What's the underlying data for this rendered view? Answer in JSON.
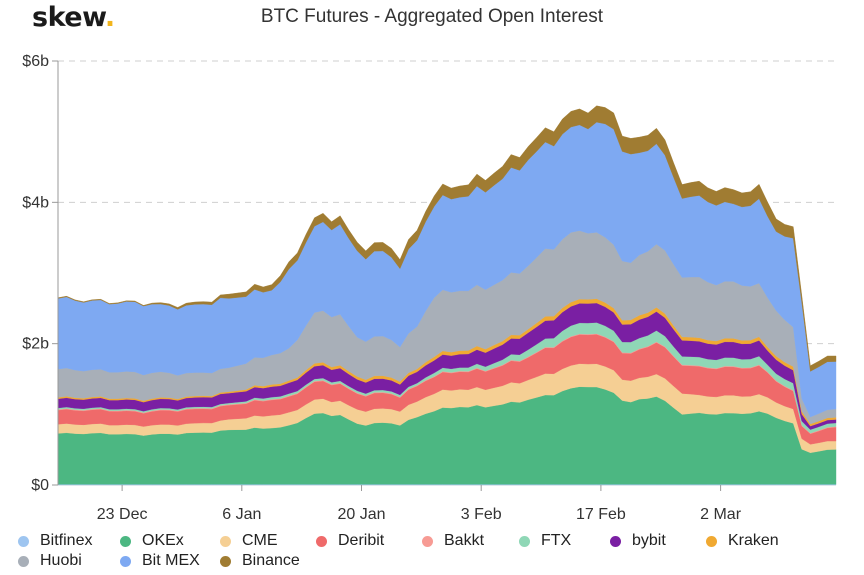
{
  "logo": {
    "text": "skew",
    "dot": "."
  },
  "chart_data": {
    "type": "area",
    "stacked": true,
    "title": "BTC Futures - Aggregated Open Interest",
    "xlabel": "",
    "ylabel": "",
    "ylim": [
      0,
      6
    ],
    "y_unit": "USD billions",
    "y_ticks": [
      0,
      2,
      4,
      6
    ],
    "y_tick_labels": [
      "$0",
      "$2b",
      "$4b",
      "$6b"
    ],
    "x_tick_labels": [
      "23 Dec",
      "6 Jan",
      "20 Jan",
      "3 Feb",
      "17 Feb",
      "2 Mar"
    ],
    "x_tick_index": [
      7.5,
      21.5,
      35.5,
      49.5,
      63.5,
      77.5
    ],
    "grid": "horizontal dashed",
    "legend_position": "bottom",
    "n_points": 92,
    "knots_index": [
      0,
      5,
      10,
      12,
      15,
      19,
      20,
      25,
      27,
      30,
      33,
      35,
      36,
      38,
      40,
      42,
      44,
      47,
      50,
      53,
      55,
      57,
      60,
      62,
      65,
      66,
      67,
      68,
      70,
      73,
      75,
      77,
      79,
      82,
      83,
      84,
      86,
      87,
      88,
      91
    ],
    "total_knots": [
      2.65,
      2.6,
      2.58,
      2.56,
      2.55,
      2.65,
      2.7,
      2.85,
      3.1,
      3.78,
      3.8,
      3.4,
      3.38,
      3.42,
      3.25,
      3.6,
      4.15,
      4.25,
      4.35,
      4.6,
      4.8,
      5.0,
      5.25,
      5.35,
      5.28,
      5.0,
      4.85,
      4.9,
      5.08,
      4.3,
      4.25,
      4.2,
      4.15,
      4.2,
      4.0,
      3.8,
      3.6,
      2.7,
      1.7,
      1.85
    ],
    "series": [
      {
        "name": "Bitfinex",
        "color": "#9ec5f0",
        "knots": [
          0.01,
          0.01,
          0.01,
          0.01,
          0.01,
          0.01,
          0.01,
          0.01,
          0.01,
          0.01,
          0.01,
          0.01,
          0.01,
          0.01,
          0.01,
          0.01,
          0.01,
          0.01,
          0.01,
          0.01,
          0.01,
          0.01,
          0.01,
          0.01,
          0.01,
          0.01,
          0.01,
          0.01,
          0.01,
          0.01,
          0.01,
          0.01,
          0.01,
          0.01,
          0.01,
          0.01,
          0.01,
          0.01,
          0.01,
          0.01
        ]
      },
      {
        "name": "OKEx",
        "color": "#4cb782",
        "knots": [
          0.72,
          0.72,
          0.7,
          0.71,
          0.72,
          0.75,
          0.77,
          0.8,
          0.82,
          1.0,
          0.98,
          0.85,
          0.85,
          0.87,
          0.85,
          0.95,
          1.05,
          1.1,
          1.1,
          1.15,
          1.2,
          1.25,
          1.35,
          1.4,
          1.3,
          1.2,
          1.15,
          1.2,
          1.25,
          1.0,
          1.0,
          1.0,
          1.0,
          1.02,
          1.0,
          0.95,
          0.85,
          0.5,
          0.45,
          0.5
        ]
      },
      {
        "name": "CME",
        "color": "#f5cf94",
        "knots": [
          0.13,
          0.13,
          0.13,
          0.13,
          0.13,
          0.14,
          0.15,
          0.18,
          0.18,
          0.2,
          0.2,
          0.2,
          0.2,
          0.2,
          0.2,
          0.22,
          0.25,
          0.25,
          0.25,
          0.27,
          0.28,
          0.3,
          0.32,
          0.33,
          0.32,
          0.3,
          0.3,
          0.3,
          0.32,
          0.3,
          0.25,
          0.25,
          0.25,
          0.24,
          0.23,
          0.22,
          0.2,
          0.15,
          0.12,
          0.12
        ]
      },
      {
        "name": "Deribit",
        "color": "#ef6a6a",
        "knots": [
          0.2,
          0.2,
          0.19,
          0.2,
          0.2,
          0.2,
          0.2,
          0.22,
          0.22,
          0.25,
          0.24,
          0.22,
          0.22,
          0.22,
          0.2,
          0.22,
          0.24,
          0.25,
          0.26,
          0.3,
          0.32,
          0.36,
          0.4,
          0.42,
          0.4,
          0.38,
          0.38,
          0.4,
          0.45,
          0.4,
          0.4,
          0.4,
          0.4,
          0.4,
          0.35,
          0.3,
          0.25,
          0.18,
          0.15,
          0.2
        ]
      },
      {
        "name": "Bakkt",
        "color": "#f79b94",
        "knots": [
          0.01,
          0.01,
          0.01,
          0.01,
          0.01,
          0.01,
          0.01,
          0.01,
          0.01,
          0.01,
          0.01,
          0.01,
          0.01,
          0.01,
          0.01,
          0.01,
          0.01,
          0.01,
          0.01,
          0.01,
          0.01,
          0.01,
          0.01,
          0.01,
          0.01,
          0.01,
          0.01,
          0.01,
          0.01,
          0.01,
          0.01,
          0.01,
          0.01,
          0.01,
          0.01,
          0.01,
          0.01,
          0.01,
          0.01,
          0.01
        ]
      },
      {
        "name": "FTX",
        "color": "#8fd7b6",
        "knots": [
          0.02,
          0.02,
          0.02,
          0.02,
          0.02,
          0.02,
          0.02,
          0.03,
          0.03,
          0.03,
          0.03,
          0.03,
          0.03,
          0.03,
          0.03,
          0.03,
          0.05,
          0.05,
          0.06,
          0.08,
          0.1,
          0.12,
          0.15,
          0.16,
          0.15,
          0.15,
          0.15,
          0.15,
          0.16,
          0.12,
          0.12,
          0.12,
          0.12,
          0.12,
          0.1,
          0.1,
          0.1,
          0.06,
          0.05,
          0.05
        ]
      },
      {
        "name": "bybit",
        "color": "#7a1fa3",
        "knots": [
          0.13,
          0.13,
          0.13,
          0.13,
          0.13,
          0.14,
          0.14,
          0.15,
          0.15,
          0.18,
          0.18,
          0.16,
          0.16,
          0.16,
          0.15,
          0.16,
          0.18,
          0.19,
          0.2,
          0.22,
          0.24,
          0.25,
          0.27,
          0.28,
          0.26,
          0.25,
          0.25,
          0.26,
          0.27,
          0.23,
          0.22,
          0.22,
          0.22,
          0.22,
          0.2,
          0.2,
          0.18,
          0.1,
          0.05,
          0.05
        ]
      },
      {
        "name": "Kraken",
        "color": "#f0a932",
        "knots": [
          0.02,
          0.02,
          0.02,
          0.02,
          0.02,
          0.02,
          0.02,
          0.03,
          0.03,
          0.04,
          0.04,
          0.04,
          0.04,
          0.04,
          0.04,
          0.04,
          0.05,
          0.05,
          0.05,
          0.05,
          0.05,
          0.06,
          0.06,
          0.06,
          0.06,
          0.06,
          0.06,
          0.06,
          0.06,
          0.05,
          0.05,
          0.05,
          0.05,
          0.05,
          0.05,
          0.05,
          0.05,
          0.04,
          0.03,
          0.03
        ]
      },
      {
        "name": "Huobi",
        "color": "#a8afb8",
        "knots": [
          0.4,
          0.38,
          0.37,
          0.36,
          0.33,
          0.33,
          0.34,
          0.42,
          0.45,
          0.72,
          0.72,
          0.55,
          0.55,
          0.56,
          0.5,
          0.6,
          0.85,
          0.85,
          0.85,
          0.87,
          0.9,
          0.95,
          0.98,
          0.95,
          0.9,
          0.85,
          0.8,
          0.85,
          0.9,
          0.85,
          0.85,
          0.8,
          0.8,
          0.75,
          0.7,
          0.65,
          0.55,
          0.18,
          0.1,
          0.12
        ]
      }
    ],
    "residual_series": {
      "name": "Bit MEX",
      "color": "#7ea9f2"
    },
    "top_series": {
      "name": "Binance",
      "color": "#a07c32",
      "knots": [
        0.01,
        0.01,
        0.01,
        0.02,
        0.03,
        0.04,
        0.06,
        0.08,
        0.1,
        0.12,
        0.12,
        0.12,
        0.12,
        0.12,
        0.13,
        0.14,
        0.15,
        0.16,
        0.17,
        0.18,
        0.19,
        0.2,
        0.22,
        0.23,
        0.23,
        0.22,
        0.22,
        0.22,
        0.22,
        0.2,
        0.2,
        0.2,
        0.2,
        0.2,
        0.2,
        0.18,
        0.16,
        0.1,
        0.08,
        0.08
      ]
    },
    "legend": [
      "Bitfinex",
      "OKEx",
      "CME",
      "Deribit",
      "Bakkt",
      "FTX",
      "bybit",
      "Kraken",
      "Huobi",
      "Bit MEX",
      "Binance"
    ],
    "legend_colors": [
      "#9ec5f0",
      "#4cb782",
      "#f5cf94",
      "#ef6a6a",
      "#f79b94",
      "#8fd7b6",
      "#7a1fa3",
      "#f0a932",
      "#a8afb8",
      "#7ea9f2",
      "#a07c32"
    ]
  }
}
